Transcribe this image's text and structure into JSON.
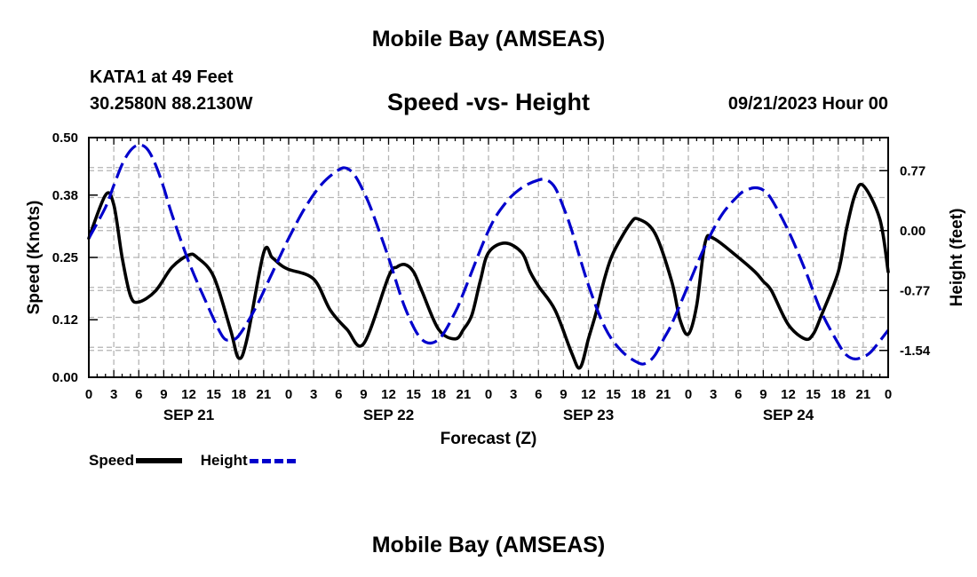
{
  "header": {
    "title": "Mobile Bay (AMSEAS)",
    "station": "KATA1 at 49 Feet",
    "coords": "30.2580N  88.2130W",
    "subtitle": "Speed -vs- Height",
    "run_time": "09/21/2023 Hour 00"
  },
  "footer": {
    "title": "Mobile Bay (AMSEAS)"
  },
  "legend": {
    "speed": "Speed",
    "height": "Height"
  },
  "colors": {
    "speed": "#000000",
    "height": "#0000cc",
    "grid": "#b4b4b4"
  },
  "chart_data": {
    "type": "line",
    "title": "Speed -vs- Height",
    "xlabel": "Forecast (Z)",
    "ylabel": "Speed (Knots)",
    "y2label": "Height (feet)",
    "xlim": [
      0,
      96
    ],
    "ylim": [
      0,
      0.5
    ],
    "y2lim": [
      -1.885,
      1.195
    ],
    "yticks": [
      0.0,
      0.12,
      0.25,
      0.38,
      0.5
    ],
    "ytick_labels": [
      "0.00",
      "0.12",
      "0.25",
      "0.38",
      "0.50"
    ],
    "y2ticks": [
      -1.54,
      -0.77,
      0.0,
      0.77
    ],
    "y2tick_labels": [
      "-1.54",
      "-0.77",
      "0.00",
      "0.77"
    ],
    "xtick_labels": [
      "0",
      "3",
      "6",
      "9",
      "12",
      "15",
      "18",
      "21",
      "0",
      "3",
      "6",
      "9",
      "12",
      "15",
      "18",
      "21",
      "0",
      "3",
      "6",
      "9",
      "12",
      "15",
      "18",
      "21",
      "0",
      "3",
      "6",
      "9",
      "12",
      "15",
      "18",
      "21",
      "0"
    ],
    "days": [
      {
        "label": "SEP 21",
        "x": 12
      },
      {
        "label": "SEP 22",
        "x": 36
      },
      {
        "label": "SEP 23",
        "x": 60
      },
      {
        "label": "SEP 24",
        "x": 84
      }
    ],
    "grid": true,
    "series": [
      {
        "name": "Speed",
        "axis": "left",
        "style": "solid",
        "x": [
          0,
          2,
          3,
          4,
          5,
          6,
          8,
          10,
          12,
          13,
          15,
          17,
          18,
          19,
          21,
          22,
          23,
          24,
          27,
          29,
          31,
          33,
          36,
          37,
          38,
          39,
          40,
          42,
          44,
          45,
          46,
          47,
          48,
          50,
          52,
          53,
          54,
          56,
          58,
          59,
          60,
          61,
          62,
          63,
          65,
          66,
          68,
          70,
          71,
          72,
          73,
          74,
          75,
          78,
          80,
          81,
          82,
          84,
          86,
          87,
          88,
          90,
          91,
          92,
          93,
          95,
          96
        ],
        "y": [
          0.29,
          0.38,
          0.36,
          0.25,
          0.17,
          0.157,
          0.18,
          0.23,
          0.255,
          0.25,
          0.21,
          0.1,
          0.04,
          0.08,
          0.26,
          0.25,
          0.235,
          0.225,
          0.205,
          0.14,
          0.1,
          0.07,
          0.21,
          0.23,
          0.235,
          0.22,
          0.18,
          0.1,
          0.08,
          0.1,
          0.13,
          0.2,
          0.26,
          0.28,
          0.26,
          0.22,
          0.19,
          0.14,
          0.05,
          0.02,
          0.08,
          0.14,
          0.21,
          0.26,
          0.32,
          0.33,
          0.3,
          0.2,
          0.12,
          0.09,
          0.15,
          0.28,
          0.29,
          0.25,
          0.22,
          0.2,
          0.18,
          0.11,
          0.08,
          0.09,
          0.13,
          0.22,
          0.31,
          0.38,
          0.4,
          0.33,
          0.22
        ]
      },
      {
        "name": "Height",
        "axis": "right",
        "style": "dashed",
        "x": [
          0,
          2,
          3,
          4,
          5,
          6,
          7,
          8,
          9,
          10,
          12,
          14,
          16,
          17,
          18,
          20,
          22,
          24,
          26,
          28,
          30,
          31,
          32,
          33,
          34,
          36,
          38,
          40,
          42,
          44,
          45,
          48,
          50,
          52,
          54,
          55,
          56,
          57,
          58,
          60,
          62,
          64,
          66,
          67,
          68,
          69,
          70,
          72,
          74,
          76,
          78,
          79,
          80,
          81,
          82,
          84,
          86,
          88,
          90,
          91,
          92,
          93,
          94,
          96
        ],
        "y": [
          -0.1,
          0.3,
          0.58,
          0.85,
          1.03,
          1.1,
          1.05,
          0.85,
          0.55,
          0.2,
          -0.4,
          -0.9,
          -1.35,
          -1.4,
          -1.35,
          -1.0,
          -0.55,
          -0.1,
          0.3,
          0.6,
          0.78,
          0.8,
          0.7,
          0.5,
          0.25,
          -0.35,
          -1.0,
          -1.4,
          -1.4,
          -1.05,
          -0.8,
          0.0,
          0.35,
          0.55,
          0.65,
          0.65,
          0.55,
          0.3,
          0.0,
          -0.7,
          -1.25,
          -1.55,
          -1.7,
          -1.7,
          -1.6,
          -1.4,
          -1.2,
          -0.7,
          -0.2,
          0.2,
          0.45,
          0.52,
          0.55,
          0.52,
          0.4,
          0.0,
          -0.5,
          -1.05,
          -1.45,
          -1.6,
          -1.65,
          -1.62,
          -1.55,
          -1.28
        ]
      }
    ]
  }
}
